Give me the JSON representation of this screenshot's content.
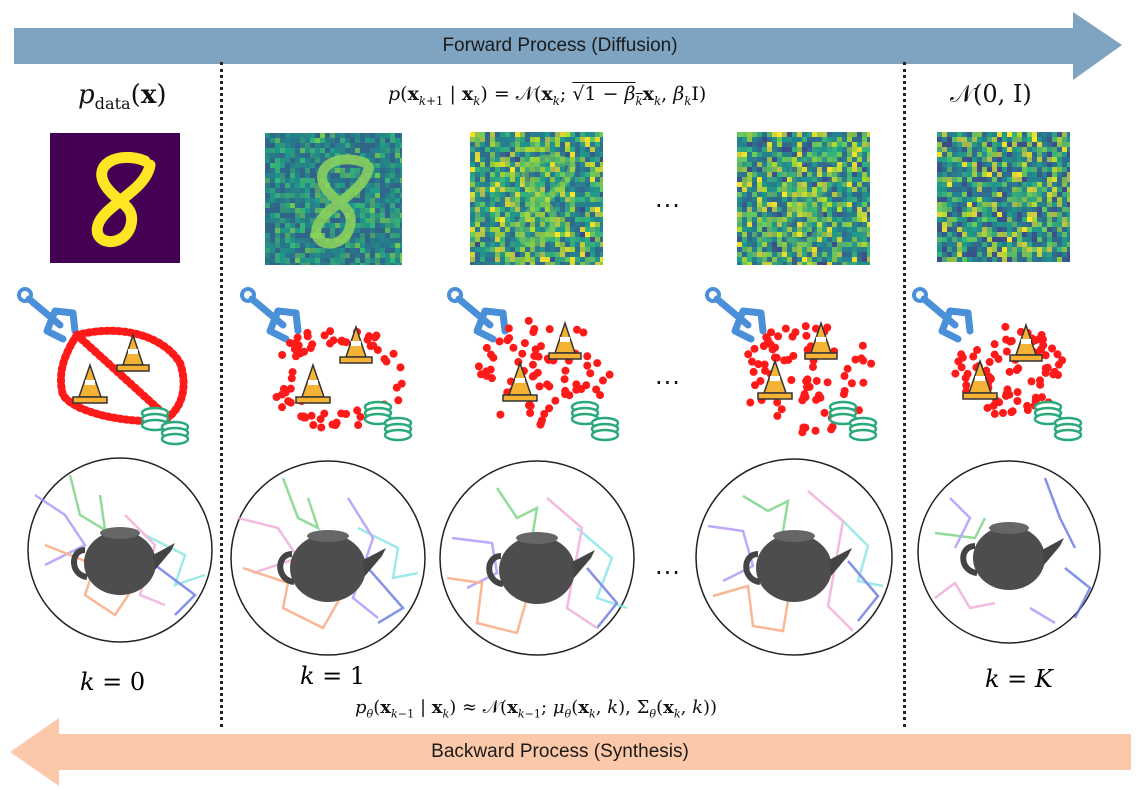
{
  "arrows": {
    "forward_label": "Forward Process (Diffusion)",
    "backward_label": "Backward Process (Synthesis)",
    "forward_color": "#7fa4c2",
    "backward_color": "#fbc9a9"
  },
  "equations": {
    "data_dist": "p_data(x)",
    "forward_step": "p(x_{k+1} | x_k) = N(x_k; sqrt(1 − β_k) x_k, β_k I)",
    "prior": "N(0, I)",
    "reverse_step": "p_θ(x_{k−1} | x_k) ≈ N(x_{k−1}; μ_θ(x_k, k), Σ_θ(x_k, k))"
  },
  "steps": {
    "k0": "k = 0",
    "k1": "k = 1",
    "kK": "k = K"
  },
  "ellipsis": "...",
  "colors": {
    "mnist_bg": "#440154",
    "mnist_digit": "#fde725",
    "noise_low": "#31688e",
    "noise_high": "#fde725",
    "robot_arm": "#4a90d9",
    "obstacle_cone": "#f5b335",
    "path_points": "#ff1a1a",
    "goal_coins": "#2aa97a",
    "teapot": "#555555"
  },
  "icons": [
    "robot-arm-icon",
    "traffic-cone-icon",
    "coin-stack-icon",
    "teapot-icon"
  ]
}
